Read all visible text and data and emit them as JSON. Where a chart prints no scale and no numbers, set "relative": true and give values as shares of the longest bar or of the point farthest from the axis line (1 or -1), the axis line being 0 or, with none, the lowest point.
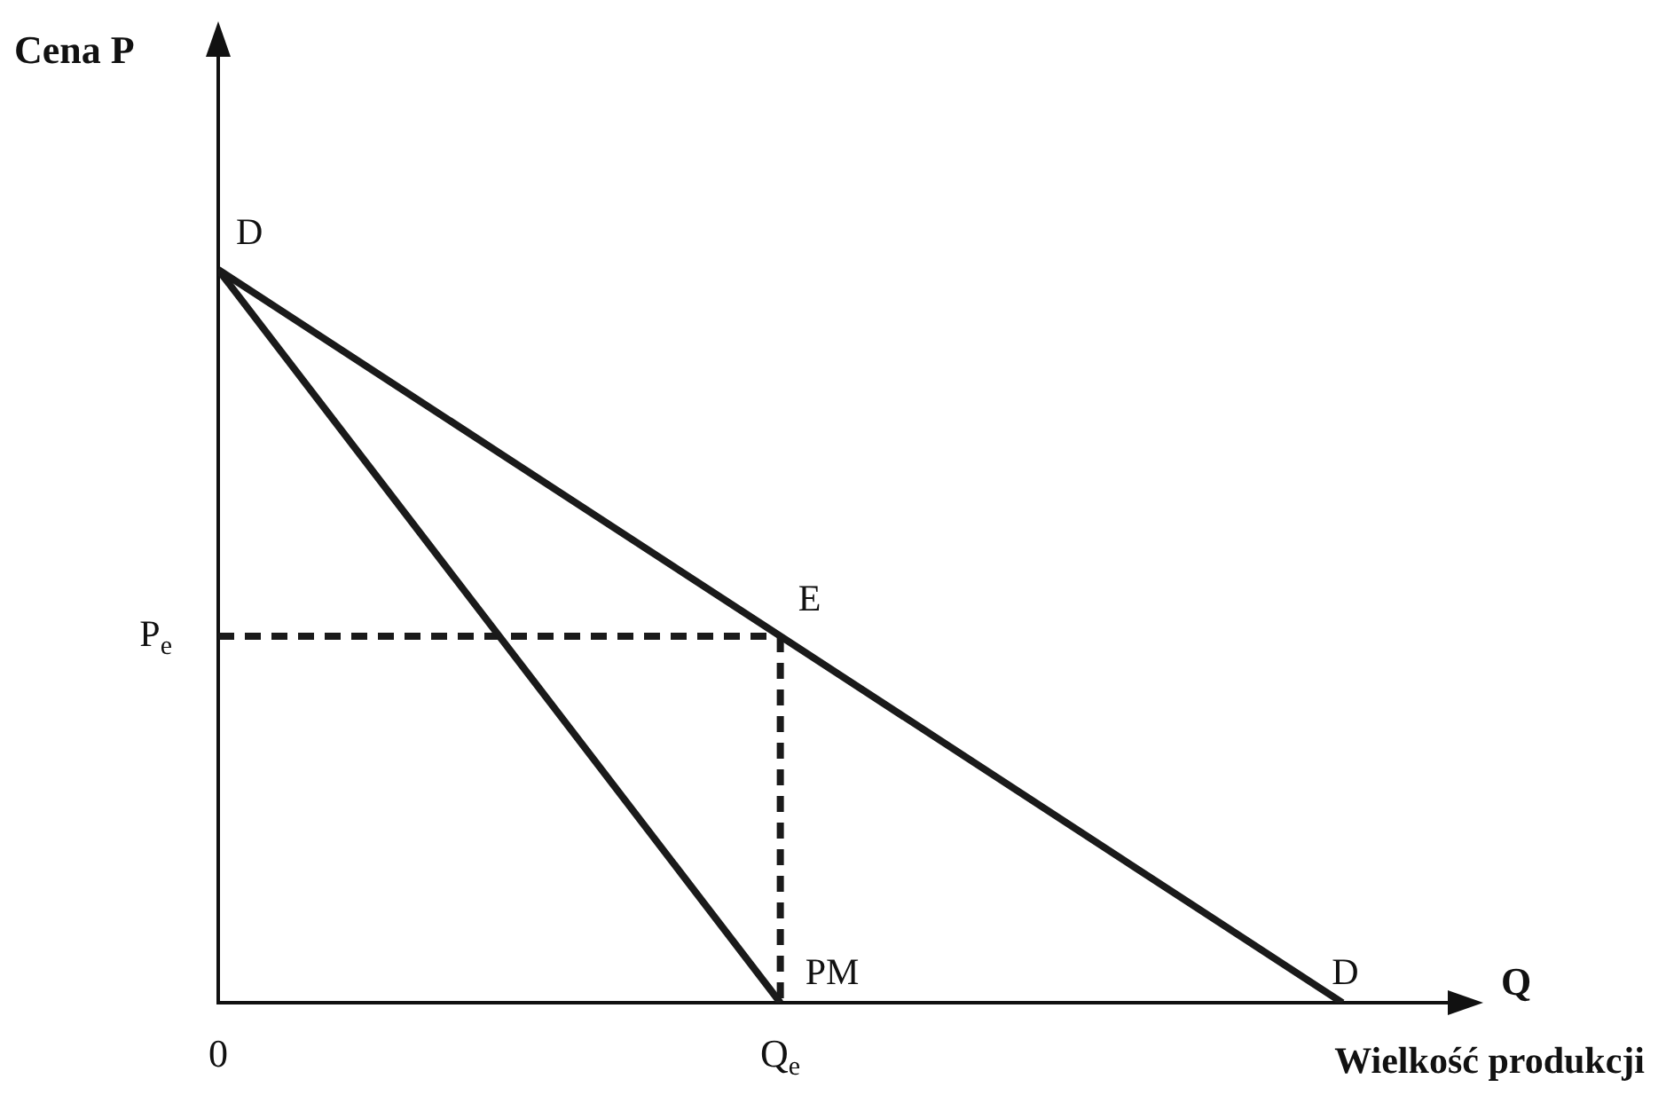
{
  "chart_data": {
    "type": "line",
    "relative": true,
    "xlabel": "Wielkość produkcji",
    "categories": [
      "0",
      "Q$_{e}$",
      null
    ],
    "series": [
      {
        "color": "#1a1a1a",
        "values": [
          1,
          0.5,
          0
        ]
      },
      {
        "color": "#1a1a1a",
        "values": [
          1,
          0,
          null
        ]
      },
      {
        "color": "#1a1a1a",
        "values": [
          0.5,
          0.5,
          null
        ],
        "line_style": "dashed"
      },
      {
        "color": "#1a1a1a",
        "x": [
          "Q$_{e}$",
          "Q$_{e}$"
        ],
        "values": [
          0.5,
          0
        ],
        "line_style": "dashed"
      }
    ],
    "annotations": [
      {
        "text": "D",
        "x": "0",
        "y": 1
      },
      {
        "text": "E",
        "x": "Q$_{e}$",
        "y": 0.5
      },
      {
        "text": "PM",
        "x": "Q$_{e}$",
        "y": 0
      },
      {
        "text": "D",
        "y": 0
      },
      {
        "text": "P$_{e}$",
        "x": "0",
        "y": 0.5
      },
      "Q",
      "Cena P"
    ]
  }
}
